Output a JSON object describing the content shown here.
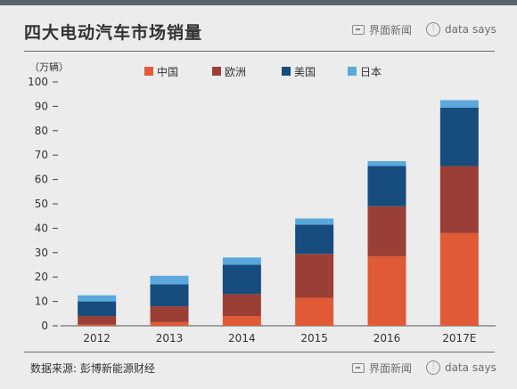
{
  "header": {
    "title": "四大电动汽车市场销量",
    "brand_jiemian": "界面新闻",
    "brand_datasays": "data says"
  },
  "footer": {
    "source": "数据来源: 彭博新能源财经",
    "brand_jiemian": "界面新闻",
    "brand_datasays": "data says"
  },
  "colors": {
    "china": "#e05a36",
    "europe": "#9a3f35",
    "usa": "#164c7e",
    "japan": "#5aa8dc"
  },
  "chart_data": {
    "type": "bar",
    "stacked": true,
    "unit_label": "（万辆）",
    "categories": [
      "2012",
      "2013",
      "2014",
      "2015",
      "2016",
      "2017E"
    ],
    "series": [
      {
        "name": "中国",
        "color": "#e05a36",
        "values": [
          0.5,
          1.5,
          4,
          11.5,
          28.5,
          38
        ]
      },
      {
        "name": "欧洲",
        "color": "#9a3f35",
        "values": [
          3.5,
          6.5,
          9,
          18,
          20.5,
          27.5
        ]
      },
      {
        "name": "美国",
        "color": "#164c7e",
        "values": [
          6,
          9,
          12,
          12,
          16.5,
          24
        ]
      },
      {
        "name": "日本",
        "color": "#5aa8dc",
        "values": [
          2.5,
          3.5,
          3,
          2.5,
          2,
          3
        ]
      }
    ],
    "ylim": [
      0,
      100
    ],
    "yticks": [
      0,
      10,
      20,
      30,
      40,
      50,
      60,
      70,
      80,
      90,
      100
    ],
    "grid": false,
    "legend_position": "top"
  }
}
